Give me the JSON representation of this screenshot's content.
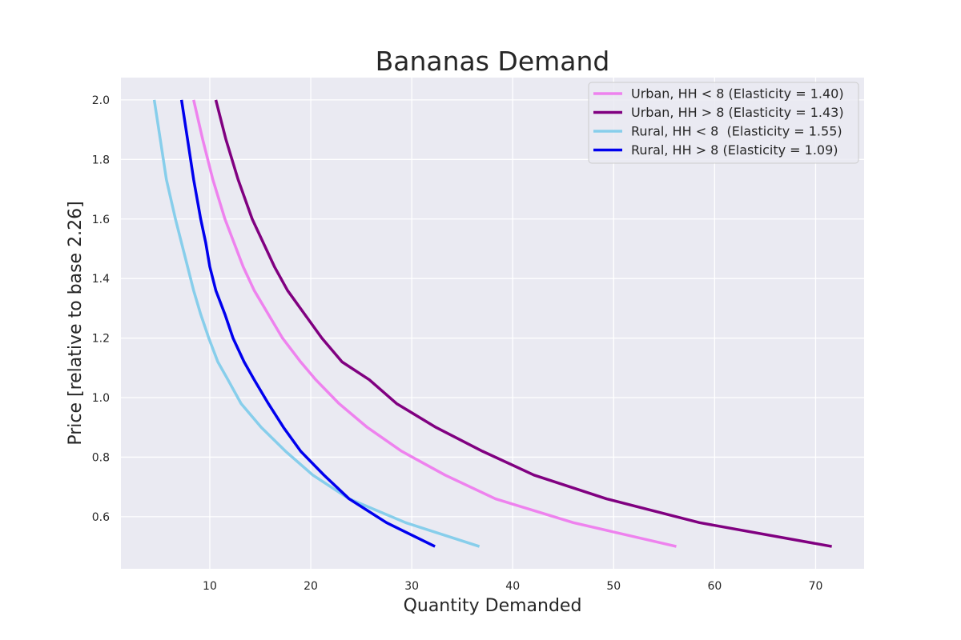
{
  "chart_data": {
    "type": "line",
    "title": "Bananas Demand",
    "xlabel": "Quantity Demanded",
    "ylabel": "Price [relative to base 2.26]",
    "xlim": [
      1.2,
      74.8
    ],
    "ylim": [
      0.425,
      2.075
    ],
    "xticks": [
      "10",
      "20",
      "30",
      "40",
      "50",
      "60",
      "70"
    ],
    "yticks": [
      "0.6",
      "0.8",
      "1.0",
      "1.2",
      "1.4",
      "1.6",
      "1.8",
      "2.0"
    ],
    "grid": true,
    "legend_position": "top-right",
    "background_color": "#eaeaf2",
    "price_points": [
      2.0,
      1.867,
      1.733,
      1.6,
      1.52,
      1.44,
      1.36,
      1.28,
      1.2,
      1.12,
      1.06,
      0.98,
      0.9,
      0.82,
      0.74,
      0.66,
      0.58,
      0.5
    ],
    "series": [
      {
        "name": "Urban, HH < 8 (Elasticity = 1.40)",
        "color": "#ee82ee",
        "values": [
          8.4,
          9.3,
          10.3,
          11.5,
          12.4,
          13.3,
          14.4,
          15.8,
          17.2,
          19.0,
          20.5,
          22.8,
          25.6,
          29.0,
          33.3,
          38.3,
          46.0,
          56.2
        ]
      },
      {
        "name": "Urban, HH > 8 (Elasticity = 1.43)",
        "color": "#800080",
        "values": [
          10.6,
          11.6,
          12.8,
          14.2,
          15.3,
          16.4,
          17.7,
          19.4,
          21.1,
          23.1,
          25.8,
          28.5,
          32.4,
          37.0,
          42.1,
          49.3,
          58.5,
          71.6
        ]
      },
      {
        "name": "Rural, HH < 8  (Elasticity = 1.55)",
        "color": "#87ceeb",
        "values": [
          4.5,
          5.1,
          5.7,
          6.6,
          7.2,
          7.8,
          8.4,
          9.1,
          9.9,
          10.8,
          11.8,
          13.1,
          15.1,
          17.5,
          20.2,
          23.8,
          29.4,
          36.7
        ]
      },
      {
        "name": "Rural, HH > 8 (Elasticity = 1.09)",
        "color": "#0000ee",
        "values": [
          7.2,
          7.8,
          8.4,
          9.1,
          9.6,
          10.0,
          10.6,
          11.5,
          12.3,
          13.4,
          14.4,
          15.8,
          17.3,
          19.0,
          21.3,
          23.8,
          27.5,
          32.3
        ]
      }
    ]
  }
}
